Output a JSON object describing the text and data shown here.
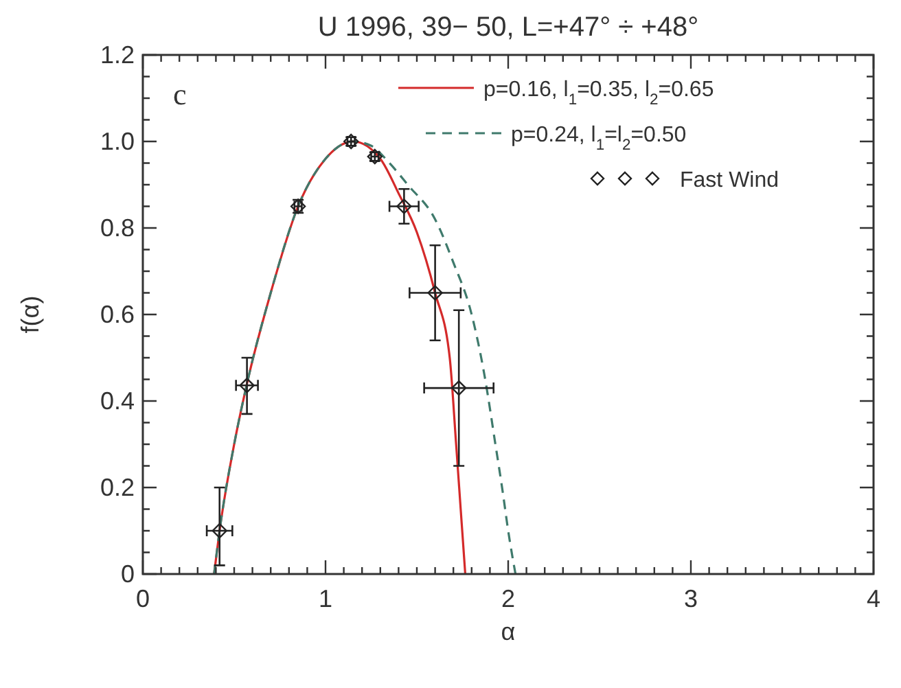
{
  "chart_data": {
    "type": "line",
    "title": "U 1996, 39− 50, L=+47° ÷ +48°",
    "xlabel": "α",
    "ylabel": "f(α)",
    "xlim": [
      0,
      4
    ],
    "xticks": [
      0,
      1,
      2,
      3,
      4
    ],
    "ylim": [
      0,
      1.2
    ],
    "yticks": [
      0,
      0.2,
      0.4,
      0.6,
      0.8,
      {
        "value": 1,
        "label": "1.0"
      },
      1.2
    ],
    "grid": false,
    "legend": "top right",
    "annotations": [
      "c"
    ],
    "series": [
      {
        "name": "p=0.16, l$_{1}$=0.35, l$_{2}$=0.65",
        "color": "#d42a2a",
        "line_style": "solid",
        "x": [
          0.39,
          0.42,
          0.5,
          0.57,
          0.7,
          0.85,
          1.0,
          1.15,
          1.3,
          1.4,
          1.5,
          1.6,
          1.68,
          1.715,
          1.74,
          1.765
        ],
        "values": [
          0,
          0.1,
          0.3,
          0.44,
          0.65,
          0.85,
          0.96,
          1.0,
          0.96,
          0.88,
          0.79,
          0.65,
          0.5,
          0.3,
          0.15,
          0
        ]
      },
      {
        "name": "p=0.24, l$_{1}$=l$_{2}$=0.50",
        "color": "#3f7a6c",
        "line_style": "dashed",
        "x": [
          0.39,
          0.42,
          0.5,
          0.57,
          0.7,
          0.85,
          1.0,
          1.15,
          1.25,
          1.35,
          1.45,
          1.6,
          1.7,
          1.8,
          1.87,
          1.93,
          1.97,
          2.0,
          2.04
        ],
        "values": [
          0,
          0.1,
          0.3,
          0.44,
          0.65,
          0.85,
          0.96,
          1.0,
          0.99,
          0.95,
          0.9,
          0.82,
          0.72,
          0.6,
          0.46,
          0.3,
          0.19,
          0.1,
          0
        ]
      },
      {
        "type": "scatter",
        "name": "Fast Wind",
        "color": "#222222",
        "marker": "diamond",
        "x": [
          0.42,
          0.57,
          0.85,
          1.14,
          1.27,
          1.43,
          1.6,
          1.73
        ],
        "values": [
          0.1,
          0.436,
          0.85,
          1.0,
          0.965,
          0.85,
          0.65,
          0.43
        ],
        "errors": [
          [
            0.02,
            0.2
          ],
          [
            0.37,
            0.5
          ],
          0.015,
          0.01,
          0.01,
          [
            0.81,
            0.89
          ],
          [
            0.54,
            0.76
          ],
          [
            0.25,
            0.61
          ]
        ],
        "xerrors": [
          0.07,
          0.06,
          0.02,
          0.02,
          0.02,
          0.08,
          0.14,
          0.19
        ]
      }
    ]
  }
}
